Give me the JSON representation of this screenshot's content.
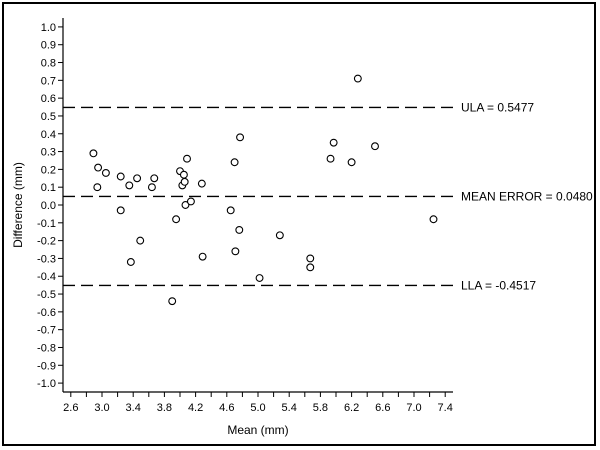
{
  "chart_data": {
    "type": "scatter",
    "title": "",
    "xlabel": "Mean (mm)",
    "ylabel": "Difference (mm)",
    "xlim": [
      2.5,
      7.5
    ],
    "ylim": [
      -1.05,
      1.05
    ],
    "x_ticks": [
      "2.6",
      "2.8",
      "3.0",
      "3.2",
      "3.4",
      "3.6",
      "3.8",
      "4.0",
      "4.2",
      "4.4",
      "4.6",
      "4.8",
      "5.0",
      "5.2",
      "5.4",
      "5.6",
      "5.8",
      "6.0",
      "6.2",
      "6.4",
      "6.6",
      "6.8",
      "7.0",
      "7.2",
      "7.4"
    ],
    "x_tick_labels_shown": [
      "2.6",
      "3.0",
      "3.4",
      "3.8",
      "4.2",
      "4.6",
      "5.0",
      "5.4",
      "5.8",
      "6.2",
      "6.6",
      "7.0",
      "7.4"
    ],
    "y_ticks": [
      "1.0",
      "0.9",
      "0.8",
      "0.7",
      "0.6",
      "0.5",
      "0.4",
      "0.3",
      "0.2",
      "0.1",
      "0.0",
      "-0.1",
      "-0.2",
      "-0.3",
      "-0.4",
      "-0.5",
      "-0.6",
      "-0.7",
      "-0.8",
      "-0.9",
      "-1.0"
    ],
    "grid": false,
    "marker": "open-circle",
    "points": [
      {
        "x": 2.89,
        "y": 0.29
      },
      {
        "x": 2.95,
        "y": 0.21
      },
      {
        "x": 3.05,
        "y": 0.18
      },
      {
        "x": 2.94,
        "y": 0.1
      },
      {
        "x": 3.24,
        "y": 0.16
      },
      {
        "x": 3.35,
        "y": 0.11
      },
      {
        "x": 3.45,
        "y": 0.15
      },
      {
        "x": 3.64,
        "y": 0.1
      },
      {
        "x": 3.67,
        "y": 0.15
      },
      {
        "x": 3.24,
        "y": -0.03
      },
      {
        "x": 3.49,
        "y": -0.2
      },
      {
        "x": 3.37,
        "y": -0.32
      },
      {
        "x": 3.9,
        "y": -0.54
      },
      {
        "x": 3.95,
        "y": -0.08
      },
      {
        "x": 4.0,
        "y": 0.19
      },
      {
        "x": 4.03,
        "y": 0.11
      },
      {
        "x": 4.06,
        "y": 0.13
      },
      {
        "x": 4.05,
        "y": 0.17
      },
      {
        "x": 4.09,
        "y": 0.26
      },
      {
        "x": 4.07,
        "y": 0.0
      },
      {
        "x": 4.14,
        "y": 0.02
      },
      {
        "x": 4.28,
        "y": 0.12
      },
      {
        "x": 4.29,
        "y": -0.29
      },
      {
        "x": 4.65,
        "y": -0.03
      },
      {
        "x": 4.7,
        "y": 0.24
      },
      {
        "x": 4.71,
        "y": -0.26
      },
      {
        "x": 4.76,
        "y": -0.14
      },
      {
        "x": 4.77,
        "y": 0.38
      },
      {
        "x": 5.02,
        "y": -0.41
      },
      {
        "x": 5.28,
        "y": -0.17
      },
      {
        "x": 5.67,
        "y": -0.3
      },
      {
        "x": 5.67,
        "y": -0.35
      },
      {
        "x": 5.93,
        "y": 0.26
      },
      {
        "x": 5.97,
        "y": 0.35
      },
      {
        "x": 6.2,
        "y": 0.24
      },
      {
        "x": 6.28,
        "y": 0.71
      },
      {
        "x": 6.5,
        "y": 0.33
      },
      {
        "x": 7.25,
        "y": -0.08
      }
    ],
    "reference_lines": [
      {
        "label": "ULA = 0.5477",
        "y": 0.5477
      },
      {
        "label": "MEAN ERROR = 0.0480",
        "y": 0.048
      },
      {
        "label": "LLA = -0.4517",
        "y": -0.4517
      }
    ]
  }
}
